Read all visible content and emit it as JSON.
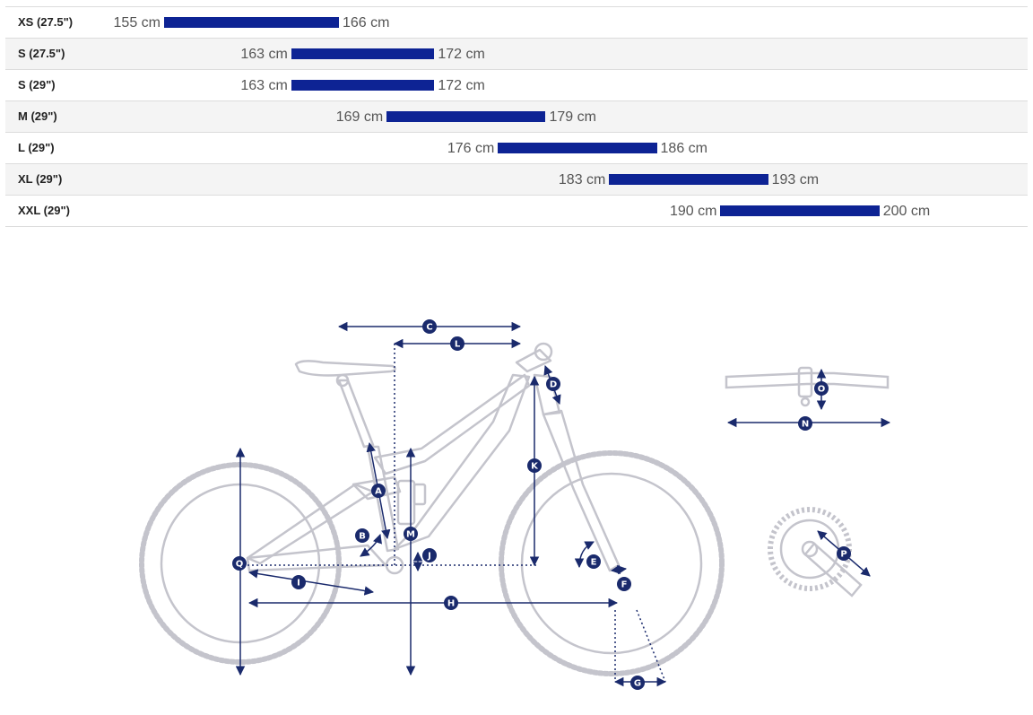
{
  "chart_data": {
    "type": "bar",
    "orientation": "horizontal-range",
    "unit": "cm",
    "accent_color": "#0d2394",
    "xlim": [
      143.5,
      210
    ],
    "rows": [
      {
        "size": "XS (27.5\")",
        "min": 155,
        "max": 166,
        "min_label": "155 cm",
        "max_label": "166 cm"
      },
      {
        "size": "S (27.5\")",
        "min": 163,
        "max": 172,
        "min_label": "163 cm",
        "max_label": "172 cm"
      },
      {
        "size": "S (29\")",
        "min": 163,
        "max": 172,
        "min_label": "163 cm",
        "max_label": "172 cm"
      },
      {
        "size": "M (29\")",
        "min": 169,
        "max": 179,
        "min_label": "169 cm",
        "max_label": "179 cm"
      },
      {
        "size": "L (29\")",
        "min": 176,
        "max": 186,
        "min_label": "176 cm",
        "max_label": "186 cm"
      },
      {
        "size": "XL (29\")",
        "min": 183,
        "max": 193,
        "min_label": "183 cm",
        "max_label": "193 cm"
      },
      {
        "size": "XXL (29\")",
        "min": 190,
        "max": 200,
        "min_label": "190 cm",
        "max_label": "200 cm"
      }
    ]
  },
  "geometry_diagram": {
    "line_color": "#c4c4cc",
    "marker_color": "#1a2a6c",
    "markers": [
      "A",
      "B",
      "C",
      "D",
      "E",
      "F",
      "G",
      "H",
      "I",
      "J",
      "K",
      "L",
      "M",
      "N",
      "O",
      "P",
      "Q"
    ]
  }
}
